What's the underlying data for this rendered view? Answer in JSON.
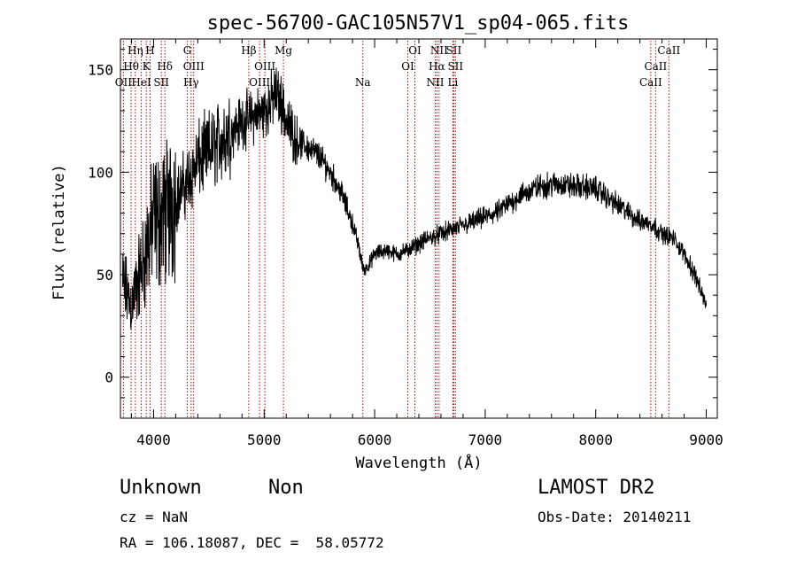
{
  "chart_data": {
    "type": "line",
    "title": "spec-56700-GAC105N57V1_sp04-065.fits",
    "xlabel": "Wavelength (Å)",
    "ylabel": "Flux (relative)",
    "xlim": [
      3700,
      9100
    ],
    "ylim": [
      -20,
      165
    ],
    "xticks": [
      4000,
      5000,
      6000,
      7000,
      8000,
      9000
    ],
    "yticks": [
      0,
      50,
      100,
      150
    ],
    "grid": false,
    "line_color": "#000000",
    "marker_color": "#a01010",
    "spectrum_anchors": {
      "x": [
        3720,
        3760,
        3800,
        3850,
        3900,
        3950,
        4000,
        4100,
        4200,
        4300,
        4400,
        4500,
        4600,
        4700,
        4800,
        4900,
        5000,
        5050,
        5100,
        5150,
        5200,
        5300,
        5400,
        5500,
        5600,
        5700,
        5800,
        5850,
        5900,
        5950,
        6000,
        6100,
        6200,
        6300,
        6400,
        6500,
        6600,
        6700,
        6800,
        6900,
        7000,
        7100,
        7200,
        7300,
        7400,
        7500,
        7600,
        7700,
        7800,
        7900,
        8000,
        8100,
        8200,
        8300,
        8400,
        8500,
        8600,
        8700,
        8800,
        8900,
        8950,
        9000
      ],
      "y": [
        45,
        40,
        35,
        45,
        55,
        65,
        75,
        80,
        87,
        95,
        105,
        110,
        115,
        120,
        125,
        127,
        130,
        133,
        138,
        135,
        125,
        115,
        112,
        108,
        100,
        90,
        75,
        65,
        52,
        55,
        60,
        62,
        60,
        62,
        65,
        68,
        70,
        72,
        74,
        76,
        78,
        80,
        84,
        88,
        91,
        93,
        94,
        94,
        93,
        93,
        92,
        88,
        84,
        80,
        76,
        75,
        70,
        68,
        60,
        50,
        42,
        35
      ]
    },
    "line_markers": [
      {
        "label": "Hη",
        "x": 3835,
        "row": 0
      },
      {
        "label": "H",
        "x": 3968,
        "row": 0
      },
      {
        "label": "Hθ",
        "x": 3797,
        "row": 1
      },
      {
        "label": "K",
        "x": 3934,
        "row": 1
      },
      {
        "label": "Hδ",
        "x": 4102,
        "row": 1
      },
      {
        "label": "OII",
        "x": 3727,
        "row": 2
      },
      {
        "label": "HeI",
        "x": 3889,
        "row": 2
      },
      {
        "label": "SII",
        "x": 4070,
        "row": 2
      },
      {
        "label": "G",
        "x": 4305,
        "row": 0
      },
      {
        "label": "OIII",
        "x": 4363,
        "row": 1
      },
      {
        "label": "Hγ",
        "x": 4340,
        "row": 2
      },
      {
        "label": "Hβ",
        "x": 4861,
        "row": 0
      },
      {
        "label": "OIII",
        "x": 5007,
        "row": 1
      },
      {
        "label": "OIII",
        "x": 4959,
        "row": 2
      },
      {
        "label": "Mg",
        "x": 5175,
        "row": 0
      },
      {
        "label": "Na",
        "x": 5893,
        "row": 2
      },
      {
        "label": "OI",
        "x": 6364,
        "row": 0
      },
      {
        "label": "OI",
        "x": 6300,
        "row": 1
      },
      {
        "label": "NII",
        "x": 6583,
        "row": 0
      },
      {
        "label": "Hα",
        "x": 6563,
        "row": 1
      },
      {
        "label": "NII",
        "x": 6548,
        "row": 2
      },
      {
        "label": "SII",
        "x": 6716,
        "row": 0
      },
      {
        "label": "SII",
        "x": 6731,
        "row": 1
      },
      {
        "label": "Li",
        "x": 6708,
        "row": 2
      },
      {
        "label": "CaII",
        "x": 8662,
        "row": 0
      },
      {
        "label": "CaII",
        "x": 8542,
        "row": 1
      },
      {
        "label": "CaII",
        "x": 8498,
        "row": 2
      }
    ]
  },
  "footer": {
    "object_class": "Unknown",
    "subclass": "Non",
    "survey": "LAMOST DR2",
    "redshift_text": "cz = NaN",
    "obs_date_text": "Obs-Date: 20140211",
    "coords_text": "RA = 106.18087, DEC =  58.05772"
  }
}
